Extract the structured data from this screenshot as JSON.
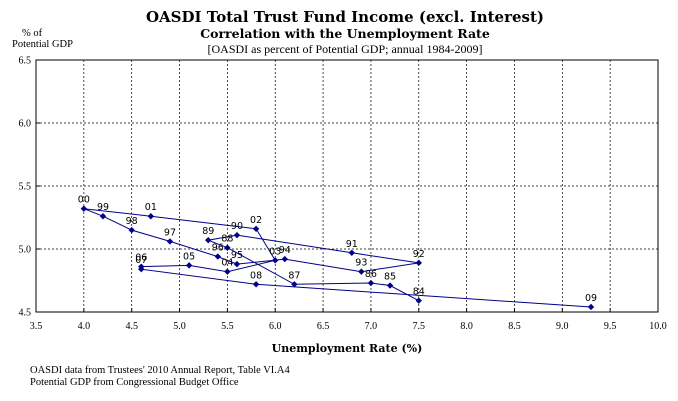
{
  "chart_data": {
    "type": "scatter",
    "title": "OASDI Total Trust Fund Income (excl. Interest)",
    "subtitle": "Correlation with the Unemployment Rate",
    "note": "[OASDI as percent of Potential GDP;  annual 1984-2009]",
    "ylabel_line1": "% of",
    "ylabel_line2": "Potential GDP",
    "xlabel": "Unemployment Rate (%)",
    "xlim": [
      3.5,
      10.0
    ],
    "ylim": [
      4.5,
      6.5
    ],
    "xticks": [
      "3.5",
      "4.0",
      "4.5",
      "5.0",
      "5.5",
      "6.0",
      "6.5",
      "7.0",
      "7.5",
      "8.0",
      "8.5",
      "9.0",
      "9.5",
      "10.0"
    ],
    "yticks": [
      "4.5",
      "5.0",
      "5.5",
      "6.0",
      "6.5"
    ],
    "grid": true,
    "color": "#00008b",
    "connected": true,
    "points": [
      {
        "label": "84",
        "x": 7.5,
        "y": 4.59
      },
      {
        "label": "85",
        "x": 7.2,
        "y": 4.71
      },
      {
        "label": "86",
        "x": 7.0,
        "y": 4.73
      },
      {
        "label": "87",
        "x": 6.2,
        "y": 4.72
      },
      {
        "label": "88",
        "x": 5.5,
        "y": 5.01
      },
      {
        "label": "89",
        "x": 5.3,
        "y": 5.07
      },
      {
        "label": "90",
        "x": 5.6,
        "y": 5.11
      },
      {
        "label": "91",
        "x": 6.8,
        "y": 4.97
      },
      {
        "label": "92",
        "x": 7.5,
        "y": 4.89
      },
      {
        "label": "93",
        "x": 6.9,
        "y": 4.82
      },
      {
        "label": "94",
        "x": 6.1,
        "y": 4.92
      },
      {
        "label": "95",
        "x": 5.6,
        "y": 4.88
      },
      {
        "label": "96",
        "x": 5.4,
        "y": 4.94
      },
      {
        "label": "97",
        "x": 4.9,
        "y": 5.06
      },
      {
        "label": "98",
        "x": 4.5,
        "y": 5.15
      },
      {
        "label": "99",
        "x": 4.2,
        "y": 5.26
      },
      {
        "label": "00",
        "x": 4.0,
        "y": 5.32
      },
      {
        "label": "01",
        "x": 4.7,
        "y": 5.26
      },
      {
        "label": "02",
        "x": 5.8,
        "y": 5.16
      },
      {
        "label": "03",
        "x": 6.0,
        "y": 4.91
      },
      {
        "label": "04",
        "x": 5.5,
        "y": 4.82
      },
      {
        "label": "05",
        "x": 5.1,
        "y": 4.87
      },
      {
        "label": "06",
        "x": 4.6,
        "y": 4.86
      },
      {
        "label": "07",
        "x": 4.6,
        "y": 4.84
      },
      {
        "label": "08",
        "x": 5.8,
        "y": 4.72
      },
      {
        "label": "09",
        "x": 9.3,
        "y": 4.54
      }
    ],
    "source_line1": "OASDI data from Trustees' 2010 Annual Report, Table VI.A4",
    "source_line2": "Potential GDP from Congressional Budget Office"
  }
}
